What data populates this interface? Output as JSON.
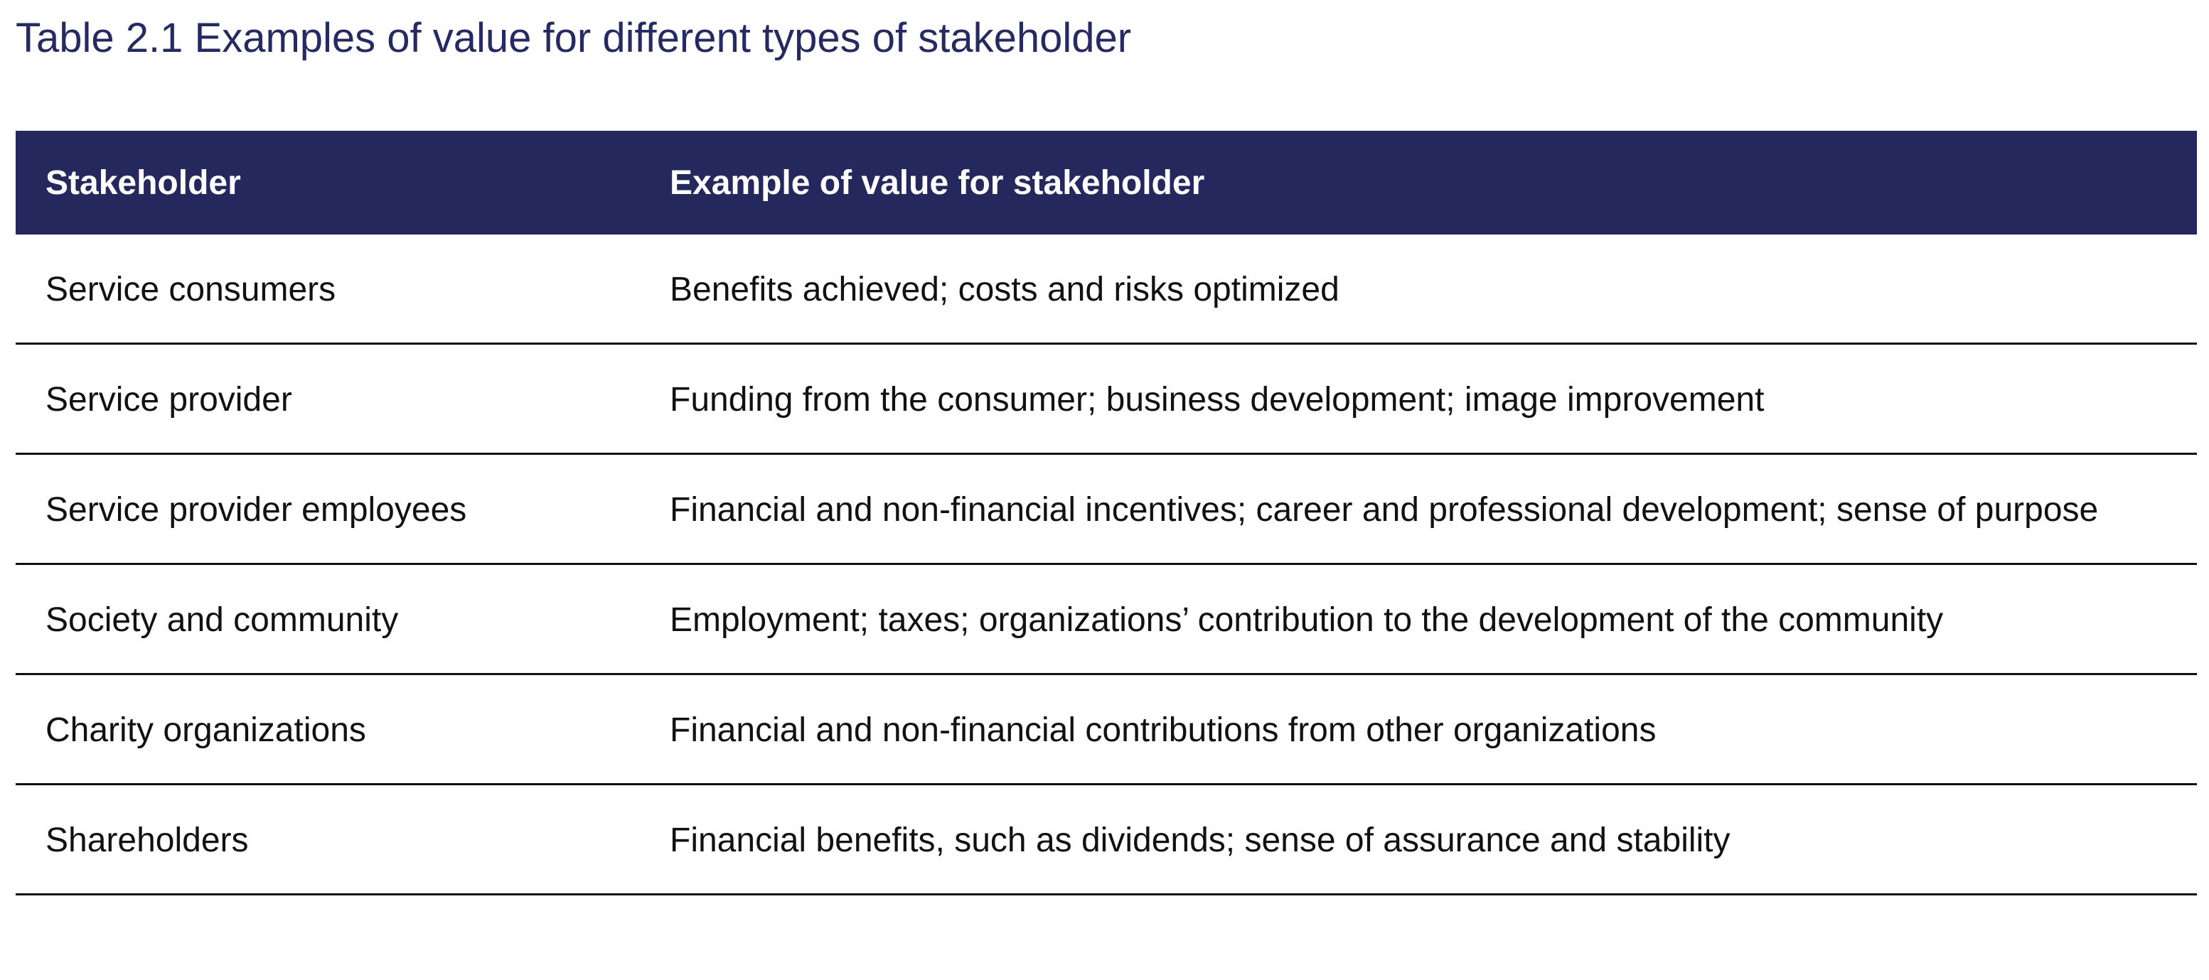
{
  "caption": "Table 2.1 Examples of value for different types of stakeholder",
  "table": {
    "headers": [
      "Stakeholder",
      "Example of value for stakeholder"
    ],
    "rows": [
      [
        "Service consumers",
        "Benefits achieved; costs and risks optimized"
      ],
      [
        "Service provider",
        "Funding from the consumer; business development; image improvement"
      ],
      [
        "Service provider employees",
        "Financial and non-financial incentives; career and professional development; sense of purpose"
      ],
      [
        "Society and community",
        "Employment; taxes; organizations’ contribution to the development of the community"
      ],
      [
        "Charity organizations",
        "Financial and non-financial contributions from other organizations"
      ],
      [
        "Shareholders",
        "Financial benefits, such as dividends; sense of assurance and stability"
      ]
    ]
  },
  "colors": {
    "header_background": "#24285d",
    "caption_text": "#262a62",
    "rule": "#111111"
  }
}
